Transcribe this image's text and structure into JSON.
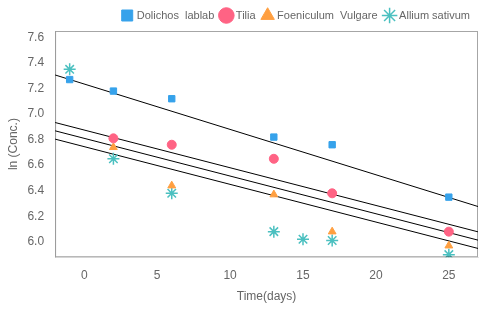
{
  "chart_data": {
    "type": "scatter",
    "xlabel": "Time(days)",
    "ylabel": "ln (Conc.)",
    "xlim": [
      -2,
      27
    ],
    "ylim": [
      5.88,
      7.65
    ],
    "xticks": [
      0,
      5,
      10,
      15,
      20,
      25
    ],
    "yticks": [
      {
        "value": 6,
        "label": "6.0"
      },
      6.2,
      6.4,
      6.6,
      6.8,
      {
        "value": 7,
        "label": "7.0"
      },
      7.2,
      7.4,
      7.6
    ],
    "grid": false,
    "legend": "upper right",
    "series": [
      {
        "name": "Dolichos  lablab",
        "marker": "square",
        "x": [
          -1,
          2,
          6,
          13,
          17,
          25
        ],
        "values": [
          7.27,
          7.18,
          7.12,
          6.82,
          6.76,
          6.35
        ],
        "fit": {
          "x": [
            -2,
            27
          ],
          "values": [
            7.306,
            6.2765
          ],
          "color": "black"
        }
      },
      {
        "name": "Tilia",
        "marker": "circle",
        "x": [
          2,
          6,
          13,
          17,
          25
        ],
        "values": [
          6.81,
          6.76,
          6.65,
          6.38,
          6.08
        ],
        "fit": {
          "x": [
            -2,
            27
          ],
          "values": [
            6.934,
            6.0785
          ],
          "color": "black"
        }
      },
      {
        "name": "Foeniculum  Vulgare",
        "marker": "triangle",
        "x": [
          2,
          6,
          13,
          17,
          25
        ],
        "values": [
          6.74,
          6.44,
          6.37,
          6.08,
          5.97
        ],
        "fit": {
          "x": [
            -2,
            27
          ],
          "values": [
            6.869,
            6.0135
          ],
          "color": "black"
        }
      },
      {
        "name": "Allium sativum",
        "marker": "star",
        "x": [
          -1,
          2,
          6,
          13,
          15,
          17,
          25
        ],
        "values": [
          7.35,
          6.65,
          6.38,
          6.08,
          6.02,
          6.01,
          5.9
        ],
        "fit": {
          "x": [
            -2,
            27
          ],
          "values": [
            6.804,
            5.9485
          ],
          "color": "black"
        }
      }
    ]
  }
}
